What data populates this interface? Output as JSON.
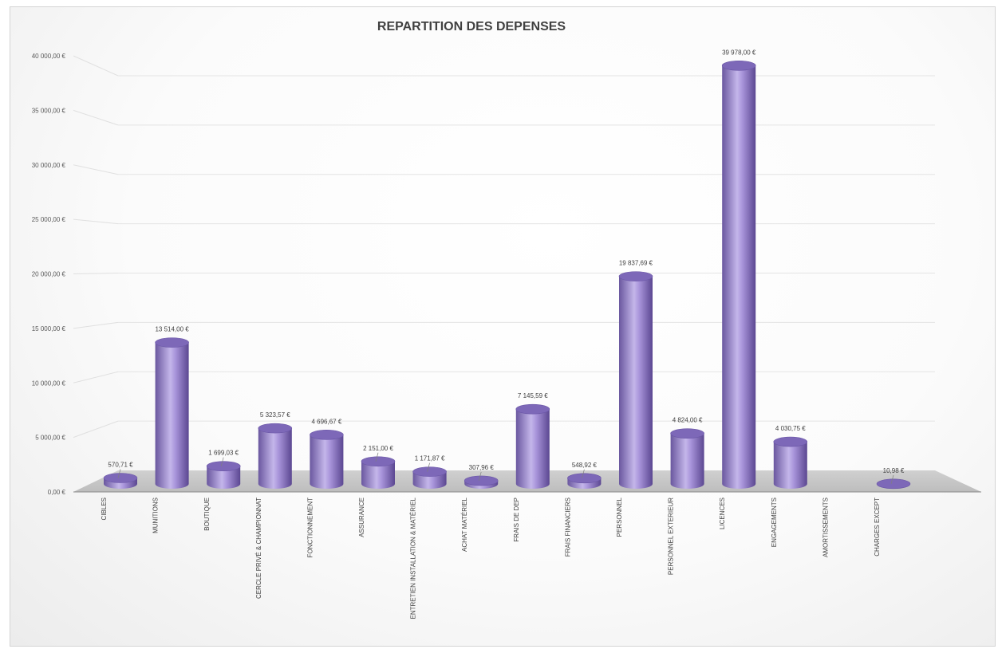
{
  "chart_data": {
    "type": "bar",
    "style": "3d-cylinder",
    "title": "REPARTITION DES DEPENSES",
    "categories": [
      "CIBLES",
      "MUNITIONS",
      "BOUTIQUE",
      "CERCLE PRIVÉ & CHAMPIONNAT",
      "FONCTIONNEMENT",
      "ASSURANCE",
      "ENTRETIEN INSTALLATION & MATÉRIEL",
      "ACHAT MATÉRIEL",
      "FRAIS DE DEP",
      "FRAIS FINANCIERS",
      "PERSONNEL",
      "PERSONNEL EXTERIEUR",
      "LICENCES",
      "ENGAGEMENTS",
      "AMORTISSEMENTS",
      "CHARGES EXCEPT"
    ],
    "values": [
      570.71,
      13514.0,
      1699.03,
      5323.57,
      4696.67,
      2151.0,
      1171.87,
      307.96,
      7145.59,
      548.92,
      19837.69,
      4824.0,
      39978.0,
      4030.75,
      null,
      10.98
    ],
    "data_labels": [
      "570,71 €",
      "13 514,00 €",
      "1 699,03 €",
      "5 323,57 €",
      "4 696,67 €",
      "2 151,00 €",
      "1 171,87 €",
      "307,96 €",
      "7 145,59 €",
      "548,92 €",
      "19 837,69 €",
      "4 824,00 €",
      "39 978,00 €",
      "4 030,75 €",
      "",
      "10,98 €"
    ],
    "yticks": [
      "0,00 €",
      "5 000,00 €",
      "10 000,00 €",
      "15 000,00 €",
      "20 000,00 €",
      "25 000,00 €",
      "30 000,00 €",
      "35 000,00 €",
      "40 000,00 €"
    ],
    "ylim": [
      0,
      40000
    ],
    "grid": true,
    "legend": "none",
    "colors": {
      "bar": "#8e7cc3",
      "bar_light": "#c5b8e8",
      "bar_dark": "#5e4a96",
      "floor": "#c6c6c6"
    }
  }
}
